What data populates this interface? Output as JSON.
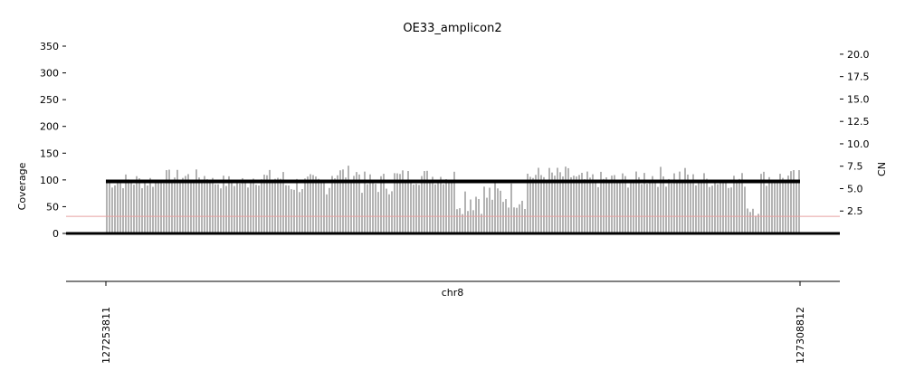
{
  "chart_data": {
    "type": "bar",
    "title": "OE33_amplicon2",
    "xlabel": "chr8",
    "ylabel_left": "Coverage",
    "ylabel_right": "CN",
    "x_start": 127253811,
    "x_end": 127308812,
    "x_ticks": [
      "127253811",
      "127308812"
    ],
    "y_left_lim": [
      0,
      350
    ],
    "y_left_ticks": [
      0,
      50,
      100,
      150,
      200,
      250,
      300,
      350
    ],
    "y_right_lim": [
      0,
      20.9
    ],
    "y_right_ticks": [
      2.5,
      5.0,
      7.5,
      10.0,
      12.5,
      15.0,
      17.5,
      20.0
    ],
    "y_right_tick_labels": [
      "2.5",
      "5.0",
      "7.5",
      "10.0",
      "12.5",
      "15.0",
      "17.5",
      "20.0"
    ],
    "coverage_segments": [
      {
        "from": 127253811,
        "to": 127258000,
        "level": 98,
        "jitter": 16
      },
      {
        "from": 127258000,
        "to": 127262000,
        "level": 106,
        "jitter": 14
      },
      {
        "from": 127262000,
        "to": 127265000,
        "level": 96,
        "jitter": 14
      },
      {
        "from": 127265000,
        "to": 127268000,
        "level": 104,
        "jitter": 16
      },
      {
        "from": 127268000,
        "to": 127271500,
        "level": 92,
        "jitter": 20
      },
      {
        "from": 127271500,
        "to": 127274000,
        "level": 112,
        "jitter": 16
      },
      {
        "from": 127274000,
        "to": 127276500,
        "level": 94,
        "jitter": 22
      },
      {
        "from": 127276500,
        "to": 127281500,
        "level": 106,
        "jitter": 16
      },
      {
        "from": 127281500,
        "to": 127284000,
        "level": 70,
        "jitter": 34
      },
      {
        "from": 127284000,
        "to": 127287000,
        "level": 72,
        "jitter": 28
      },
      {
        "from": 127287000,
        "to": 127291000,
        "level": 108,
        "jitter": 18
      },
      {
        "from": 127291000,
        "to": 127296000,
        "level": 100,
        "jitter": 16
      },
      {
        "from": 127296000,
        "to": 127300000,
        "level": 106,
        "jitter": 20
      },
      {
        "from": 127300000,
        "to": 127304500,
        "level": 100,
        "jitter": 16
      },
      {
        "from": 127304500,
        "to": 127305600,
        "level": 50,
        "jitter": 18
      },
      {
        "from": 127305600,
        "to": 127308812,
        "level": 104,
        "jitter": 16
      }
    ],
    "cn_segment": {
      "from": 127253811,
      "to": 127308812,
      "value": 5.8
    },
    "threshold_line": {
      "coverage": 32,
      "color": "#e8a0a0"
    },
    "colors": {
      "bars": "#b3b3b3",
      "cn_line": "#000000",
      "axis": "#000000"
    },
    "grid": false,
    "legend": "none"
  }
}
